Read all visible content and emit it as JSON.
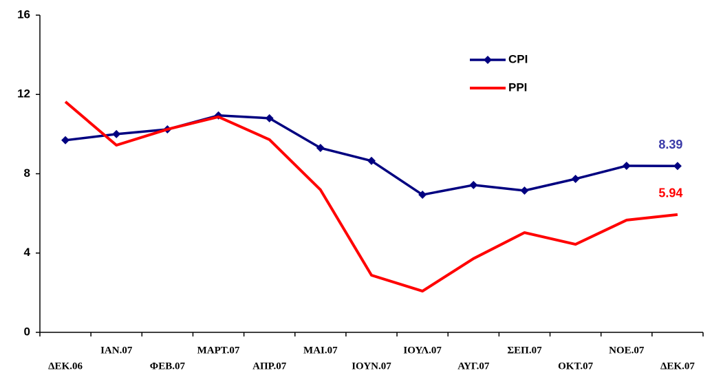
{
  "chart_data": {
    "type": "line",
    "categories": [
      "ΔΕΚ.06",
      "ΙΑΝ.07",
      "ΦΕΒ.07",
      "ΜΑΡΤ.07",
      "ΑΠΡ.07",
      "ΜΑΙ.07",
      "ΙΟΥΝ.07",
      "ΙΟΥΛ.07",
      "ΑΥΓ.07",
      "ΣΕΠ.07",
      "ΟΚΤ.07",
      "ΝΟΕ.07",
      "ΔΕΚ.07"
    ],
    "series": [
      {
        "name": "CPI",
        "color": "#000080",
        "marker": "diamond",
        "values": [
          9.69,
          10.0,
          10.24,
          10.94,
          10.8,
          9.3,
          8.65,
          6.94,
          7.43,
          7.15,
          7.74,
          8.4,
          8.39
        ],
        "value_labels": [
          null,
          null,
          null,
          null,
          null,
          null,
          null,
          null,
          null,
          null,
          null,
          null,
          "8.39"
        ],
        "label_color": "#3a3aa8"
      },
      {
        "name": "PPI",
        "color": "#ff0000",
        "values": [
          11.63,
          9.44,
          10.24,
          10.87,
          9.72,
          7.19,
          2.88,
          2.08,
          3.72,
          5.03,
          4.44,
          5.66,
          5.94
        ],
        "value_labels": [
          null,
          null,
          null,
          null,
          null,
          null,
          null,
          null,
          null,
          null,
          null,
          null,
          "5.94"
        ],
        "label_color": "#ff0000"
      }
    ],
    "ylim": [
      0,
      16
    ],
    "yticks": [
      0,
      4,
      8,
      12,
      16
    ],
    "grid": false,
    "legend": "top-right"
  }
}
